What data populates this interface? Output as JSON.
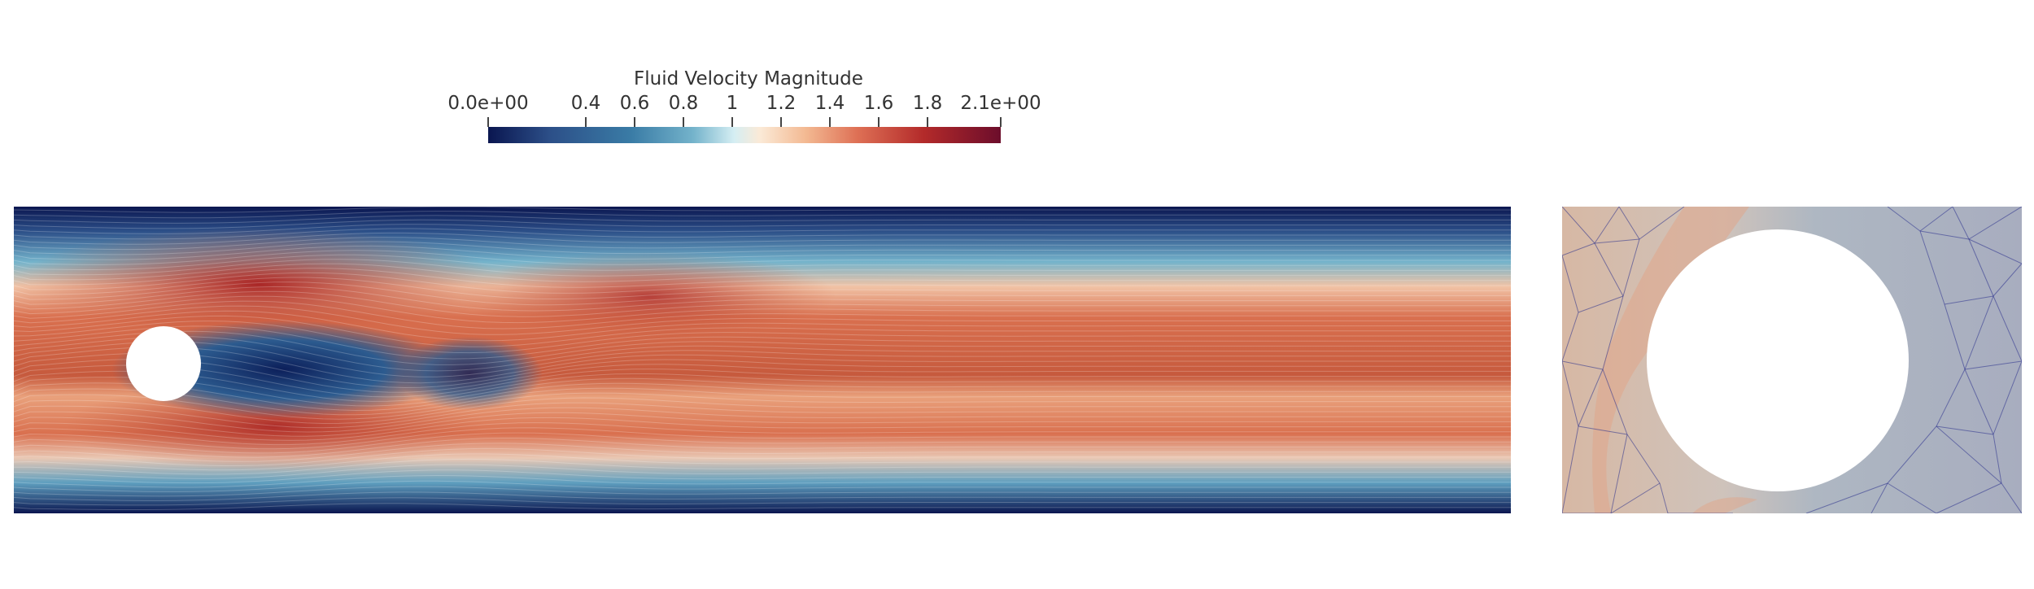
{
  "colorbar": {
    "title": "Fluid Velocity Magnitude",
    "ticks": [
      {
        "label": "0.0e+00",
        "value": 0.0
      },
      {
        "label": "0.4",
        "value": 0.4
      },
      {
        "label": "0.6",
        "value": 0.6
      },
      {
        "label": "0.8",
        "value": 0.8
      },
      {
        "label": "1",
        "value": 1.0
      },
      {
        "label": "1.2",
        "value": 1.2
      },
      {
        "label": "1.4",
        "value": 1.4
      },
      {
        "label": "1.6",
        "value": 1.6
      },
      {
        "label": "1.8",
        "value": 1.8
      },
      {
        "label": "2.1e+00",
        "value": 2.1
      }
    ],
    "range": [
      0.0,
      2.1
    ],
    "colors": [
      "#0a1650",
      "#74b3cb",
      "#fbead7",
      "#de7055",
      "#6c0d2b"
    ]
  },
  "views": {
    "main": "channel-flow-with-cylinder",
    "zoom": "mesh-around-cylinder"
  }
}
